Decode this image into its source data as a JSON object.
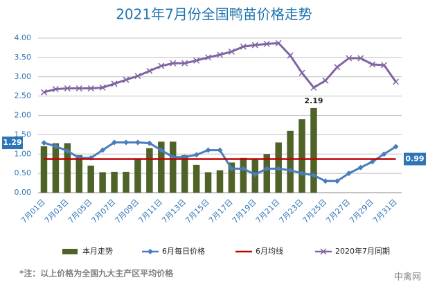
{
  "chart_data": {
    "type": "bar",
    "title": "2021年7月份全国鸭苗价格走势",
    "categories": [
      "7月01日",
      null,
      "7月03日",
      null,
      "7月05日",
      null,
      "7月07日",
      null,
      "7月09日",
      null,
      "7月11日",
      null,
      "7月13日",
      null,
      "7月15日",
      null,
      "7月17日",
      null,
      "7月19日",
      null,
      "7月21日",
      null,
      "7月23日",
      null,
      "7月25日",
      null,
      "7月27日",
      null,
      "7月29日",
      null,
      "7月31日"
    ],
    "series": [
      {
        "name": "本月走势",
        "type": "bar",
        "color": "#4f6228",
        "data_labels": [
          23
        ],
        "values": [
          1.2,
          1.28,
          1.28,
          0.97,
          0.7,
          0.53,
          0.54,
          0.54,
          0.88,
          1.15,
          1.32,
          1.32,
          0.97,
          0.72,
          0.53,
          0.58,
          0.78,
          0.9,
          0.87,
          1.0,
          1.3,
          1.6,
          1.9,
          2.19,
          null,
          null,
          null,
          null,
          null,
          null,
          null
        ]
      },
      {
        "name": "6月每日价格",
        "type": "line",
        "marker": "diamond",
        "color": "#4a7ebb",
        "data_labels": [
          0
        ],
        "values": [
          1.29,
          1.2,
          1.08,
          0.9,
          0.9,
          1.1,
          1.3,
          1.3,
          1.3,
          1.28,
          1.1,
          0.92,
          0.92,
          0.98,
          1.1,
          1.1,
          0.62,
          0.62,
          0.47,
          0.62,
          0.62,
          0.58,
          0.5,
          0.45,
          0.3,
          0.3,
          0.5,
          0.65,
          0.8,
          1.0,
          1.19
        ]
      },
      {
        "name": "6月均线",
        "type": "line",
        "marker": "none",
        "color": "#c00000",
        "data_labels": [],
        "values": [
          0.87,
          0.87,
          0.87,
          0.87,
          0.87,
          0.87,
          0.87,
          0.87,
          0.87,
          0.87,
          0.87,
          0.87,
          0.87,
          0.87,
          0.87,
          0.87,
          0.87,
          0.87,
          0.87,
          0.87,
          0.87,
          0.87,
          0.87,
          0.87,
          0.87,
          0.87,
          0.87,
          0.87,
          0.87,
          0.87,
          0.87
        ]
      },
      {
        "name": "2020年7月同期",
        "type": "line",
        "marker": "x",
        "color": "#8064a2",
        "data_labels": [],
        "values": [
          2.6,
          2.68,
          2.7,
          2.7,
          2.7,
          2.72,
          2.82,
          2.92,
          3.02,
          3.15,
          3.28,
          3.35,
          3.35,
          3.42,
          3.5,
          3.57,
          3.65,
          3.78,
          3.82,
          3.85,
          3.87,
          3.55,
          3.1,
          2.72,
          2.9,
          3.25,
          3.48,
          3.48,
          3.32,
          3.3,
          2.87
        ]
      }
    ],
    "annotations": [
      "0.99"
    ],
    "note": "*注：以上价格为全国九大主产区平均价格",
    "watermark": "中禽网",
    "ylim": [
      0,
      4
    ],
    "yticks": [
      {
        "value": 0,
        "label": "0.00"
      },
      {
        "value": 0.5,
        "label": "0.50"
      },
      {
        "value": 1,
        "label": "1.00"
      },
      {
        "value": 1.5,
        "label": "1.50"
      },
      {
        "value": 2,
        "label": "2.00"
      },
      {
        "value": 2.5,
        "label": "2.50"
      },
      {
        "value": 3,
        "label": "3.00"
      },
      {
        "value": 3.5,
        "label": "3.50"
      },
      {
        "value": 4,
        "label": "4.00"
      }
    ],
    "grid": true,
    "legend": "bottom"
  }
}
